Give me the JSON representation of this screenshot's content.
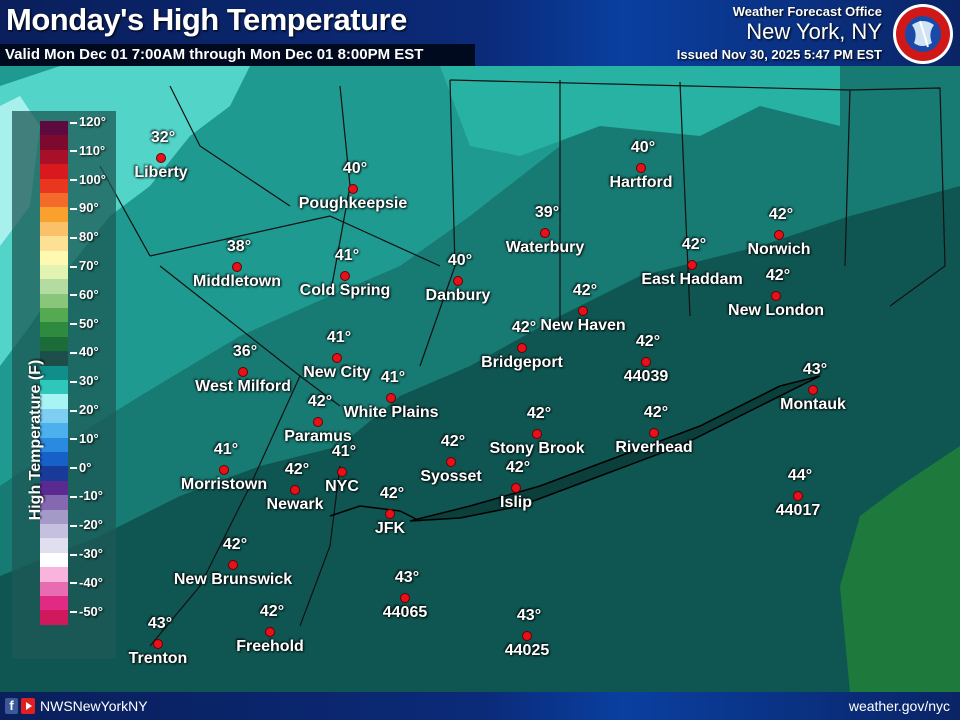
{
  "header": {
    "title": "Monday's High Temperature",
    "valid": "Valid Mon Dec 01 7:00AM through Mon Dec 01 8:00PM EST",
    "office_line1": "Weather Forecast Office",
    "office_line2": "New York, NY",
    "issued": "Issued Nov 30, 2025 5:47 PM EST",
    "logo": "National Weather Service"
  },
  "legend": {
    "title": "High Temperature (F)",
    "ticks": [
      "120°",
      "110°",
      "100°",
      "90°",
      "80°",
      "70°",
      "60°",
      "50°",
      "40°",
      "30°",
      "20°",
      "10°",
      "0°",
      "-10°",
      "-20°",
      "-30°",
      "-40°",
      "-50°"
    ],
    "colors": [
      "#5c0a40",
      "#7d0a2e",
      "#a80f28",
      "#d8191e",
      "#e8361f",
      "#f36a2a",
      "#f9a12c",
      "#fbc06a",
      "#fde094",
      "#fff8b0",
      "#e2f3b2",
      "#b4dba0",
      "#8ac57c",
      "#55a950",
      "#2d8a3e",
      "#1b6c38",
      "#1e4e4a",
      "#0f8e8a",
      "#2fc6bb",
      "#a8f4f4",
      "#7ecdf2",
      "#4bb0ec",
      "#2a8ae0",
      "#1660c8",
      "#1a3a9a",
      "#5a2a90",
      "#8468b0",
      "#a49ac8",
      "#c4c0de",
      "#e0dff0",
      "#ffffff",
      "#f8b4dc",
      "#e86cb0",
      "#e02a84",
      "#d0185c"
    ]
  },
  "points": [
    {
      "temp": "32°",
      "name": "Liberty"
    },
    {
      "temp": "40°",
      "name": "Poughkeepsie"
    },
    {
      "temp": "38°",
      "name": "Middletown"
    },
    {
      "temp": "41°",
      "name": "Cold Spring"
    },
    {
      "temp": "40°",
      "name": "Danbury"
    },
    {
      "temp": "39°",
      "name": "Waterbury"
    },
    {
      "temp": "40°",
      "name": "Hartford"
    },
    {
      "temp": "42°",
      "name": "East Haddam"
    },
    {
      "temp": "42°",
      "name": "Norwich"
    },
    {
      "temp": "42°",
      "name": "New London"
    },
    {
      "temp": "42°",
      "name": "New Haven"
    },
    {
      "temp": "42°",
      "name": "Bridgeport"
    },
    {
      "temp": "42°",
      "name": "44039"
    },
    {
      "temp": "43°",
      "name": "Montauk"
    },
    {
      "temp": "36°",
      "name": "West Milford"
    },
    {
      "temp": "41°",
      "name": "New City"
    },
    {
      "temp": "41°",
      "name": "White Plains"
    },
    {
      "temp": "42°",
      "name": "Paramus"
    },
    {
      "temp": "42°",
      "name": "Stony Brook"
    },
    {
      "temp": "42°",
      "name": "Riverhead"
    },
    {
      "temp": "42°",
      "name": "Syosset"
    },
    {
      "temp": "41°",
      "name": "Morristown"
    },
    {
      "temp": "42°",
      "name": "Newark"
    },
    {
      "temp": "41°",
      "name": "NYC"
    },
    {
      "temp": "42°",
      "name": "Islip"
    },
    {
      "temp": "42°",
      "name": "JFK"
    },
    {
      "temp": "44°",
      "name": "44017"
    },
    {
      "temp": "42°",
      "name": "New Brunswick"
    },
    {
      "temp": "43°",
      "name": "44065"
    },
    {
      "temp": "43°",
      "name": "44025"
    },
    {
      "temp": "43°",
      "name": "Trenton"
    },
    {
      "temp": "42°",
      "name": "Freehold"
    }
  ],
  "footer": {
    "social_icons": [
      "facebook-icon",
      "youtube-icon"
    ],
    "handle": "NWSNewYorkNY",
    "website": "weather.gov/nyc"
  }
}
